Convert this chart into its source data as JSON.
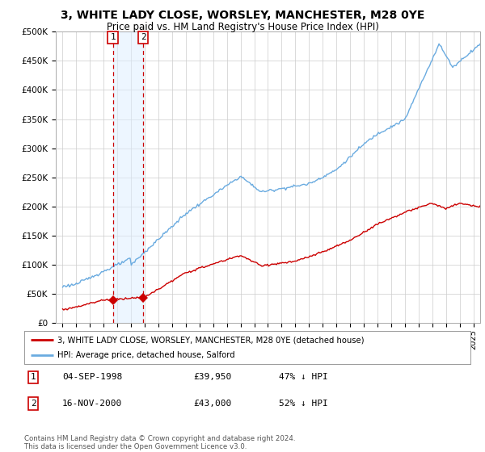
{
  "title": "3, WHITE LADY CLOSE, WORSLEY, MANCHESTER, M28 0YE",
  "subtitle": "Price paid vs. HM Land Registry's House Price Index (HPI)",
  "legend_property": "3, WHITE LADY CLOSE, WORSLEY, MANCHESTER, M28 0YE (detached house)",
  "legend_hpi": "HPI: Average price, detached house, Salford",
  "footer": "Contains HM Land Registry data © Crown copyright and database right 2024.\nThis data is licensed under the Open Government Licence v3.0.",
  "transactions": [
    {
      "num": 1,
      "date": "04-SEP-1998",
      "price": "£39,950",
      "hpi": "47% ↓ HPI"
    },
    {
      "num": 2,
      "date": "16-NOV-2000",
      "price": "£43,000",
      "hpi": "52% ↓ HPI"
    }
  ],
  "property_color": "#cc0000",
  "hpi_color": "#6aabe0",
  "marker1_x": 1998.67,
  "marker2_x": 2000.88,
  "marker1_y": 39950,
  "marker2_y": 43000,
  "ylim": [
    0,
    500000
  ],
  "yticks": [
    0,
    50000,
    100000,
    150000,
    200000,
    250000,
    300000,
    350000,
    400000,
    450000,
    500000
  ],
  "ytick_labels": [
    "£0",
    "£50K",
    "£100K",
    "£150K",
    "£200K",
    "£250K",
    "£300K",
    "£350K",
    "£400K",
    "£450K",
    "£500K"
  ],
  "xlim_start": 1994.5,
  "xlim_end": 2025.5,
  "background_color": "#ffffff",
  "grid_color": "#cccccc",
  "span_color": "#ddeeff",
  "span_alpha": 0.5
}
